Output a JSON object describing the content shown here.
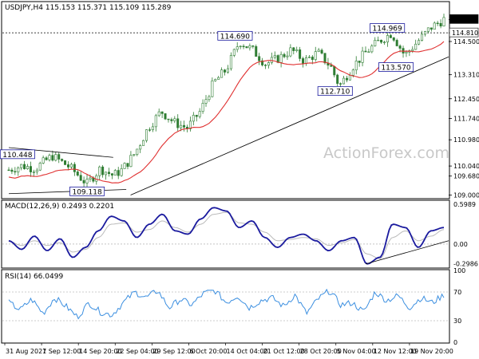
{
  "header": {
    "symbol": "USDJPY,H4",
    "ohlc": "115.153 115.371 115.109 115.289"
  },
  "watermark": "ActionForex.com",
  "colors": {
    "candle": "#2e7d32",
    "ma": "#e03030",
    "macd": "#1a1a9e",
    "signal": "#bbbbbb",
    "rsi": "#3a8ee0",
    "trend": "#000000",
    "label_border": "#1a1a9e"
  },
  "chart_data": [
    {
      "type": "candlestick",
      "title": "USDJPY,H4",
      "ylim": [
        108.9,
        115.9
      ],
      "y_ticks": [
        "115.289",
        "114.810",
        "114.500",
        "113.310",
        "112.450",
        "111.740",
        "110.980",
        "110.040",
        "109.680",
        "109.000"
      ],
      "y_tick_values": [
        115.289,
        114.81,
        114.5,
        113.31,
        112.45,
        111.74,
        110.98,
        110.04,
        109.68,
        109.0
      ],
      "current_price_label": "115.289",
      "horizontal_line_label": "114.810",
      "annotations": [
        {
          "text": "110.448",
          "x": 0.02,
          "y": 110.448
        },
        {
          "text": "109.118",
          "x": 0.18,
          "y": 109.118
        },
        {
          "text": "114.690",
          "x": 0.52,
          "y": 114.69
        },
        {
          "text": "112.710",
          "x": 0.75,
          "y": 112.71
        },
        {
          "text": "114.969",
          "x": 0.87,
          "y": 114.969
        },
        {
          "text": "113.570",
          "x": 0.89,
          "y": 113.57
        }
      ],
      "key_closes": [
        [
          0,
          109.9
        ],
        [
          0.03,
          110.05
        ],
        [
          0.06,
          109.95
        ],
        [
          0.1,
          110.4
        ],
        [
          0.14,
          110.0
        ],
        [
          0.18,
          109.4
        ],
        [
          0.21,
          109.95
        ],
        [
          0.24,
          109.7
        ],
        [
          0.26,
          109.9
        ],
        [
          0.29,
          110.5
        ],
        [
          0.32,
          111.4
        ],
        [
          0.35,
          112.0
        ],
        [
          0.38,
          111.6
        ],
        [
          0.41,
          111.4
        ],
        [
          0.44,
          112.0
        ],
        [
          0.47,
          113.0
        ],
        [
          0.5,
          113.5
        ],
        [
          0.53,
          114.5
        ],
        [
          0.56,
          114.2
        ],
        [
          0.59,
          113.7
        ],
        [
          0.62,
          113.9
        ],
        [
          0.65,
          114.2
        ],
        [
          0.68,
          113.8
        ],
        [
          0.71,
          114.1
        ],
        [
          0.74,
          113.6
        ],
        [
          0.76,
          112.9
        ],
        [
          0.79,
          113.6
        ],
        [
          0.82,
          114.1
        ],
        [
          0.85,
          114.5
        ],
        [
          0.88,
          114.8
        ],
        [
          0.91,
          114.0
        ],
        [
          0.94,
          114.5
        ],
        [
          0.97,
          115.0
        ],
        [
          1.0,
          115.29
        ]
      ]
    },
    {
      "type": "line",
      "title": "MACD(12,26,9) 0.2493 0.2201",
      "ylim": [
        -0.35,
        0.65
      ],
      "y_ticks": [
        "0.5989",
        "0.00",
        "-0.2986"
      ],
      "y_tick_values": [
        0.5989,
        0.0,
        -0.2986
      ],
      "series": [
        {
          "name": "MACD",
          "values": [
            0.05,
            -0.08,
            0.12,
            -0.1,
            0.08,
            -0.2,
            -0.05,
            0.2,
            0.42,
            0.35,
            0.1,
            0.3,
            0.45,
            0.2,
            0.15,
            0.38,
            0.55,
            0.5,
            0.25,
            0.35,
            0.1,
            -0.05,
            0.1,
            0.15,
            0.05,
            -0.1,
            0.05,
            0.1,
            -0.3,
            -0.2,
            0.3,
            0.25,
            -0.05,
            0.2,
            0.25
          ]
        },
        {
          "name": "Signal",
          "values": [
            0.04,
            -0.02,
            0.05,
            -0.02,
            0.02,
            -0.12,
            -0.08,
            0.1,
            0.3,
            0.32,
            0.18,
            0.22,
            0.35,
            0.25,
            0.18,
            0.3,
            0.45,
            0.48,
            0.32,
            0.3,
            0.18,
            0.05,
            0.07,
            0.1,
            0.08,
            -0.02,
            0.02,
            0.07,
            -0.15,
            -0.22,
            0.1,
            0.2,
            0.05,
            0.12,
            0.22
          ]
        }
      ]
    },
    {
      "type": "line",
      "title": "RSI(14) 66.0499",
      "ylim": [
        0,
        100
      ],
      "y_ticks": [
        "100",
        "70",
        "30",
        "0"
      ],
      "y_tick_values": [
        100,
        70,
        30,
        0
      ],
      "series": [
        {
          "name": "RSI",
          "values": [
            55,
            45,
            60,
            40,
            62,
            50,
            35,
            55,
            42,
            38,
            55,
            70,
            62,
            72,
            48,
            60,
            52,
            68,
            72,
            55,
            65,
            48,
            58,
            62,
            50,
            66,
            40,
            60,
            72,
            52,
            55,
            42,
            70,
            58,
            65,
            48,
            62,
            55,
            66
          ]
        }
      ]
    }
  ],
  "x_axis": {
    "labels": [
      "31 Aug 2021",
      "7 Sep 12:00",
      "14 Sep 20:00",
      "22 Sep 04:00",
      "29 Sep 12:00",
      "6 Oct 20:00",
      "14 Oct 04:00",
      "21 Oct 12:00",
      "28 Oct 20:00",
      "5 Nov 04:00",
      "12 Nov 12:00",
      "19 Nov 20:00"
    ]
  }
}
